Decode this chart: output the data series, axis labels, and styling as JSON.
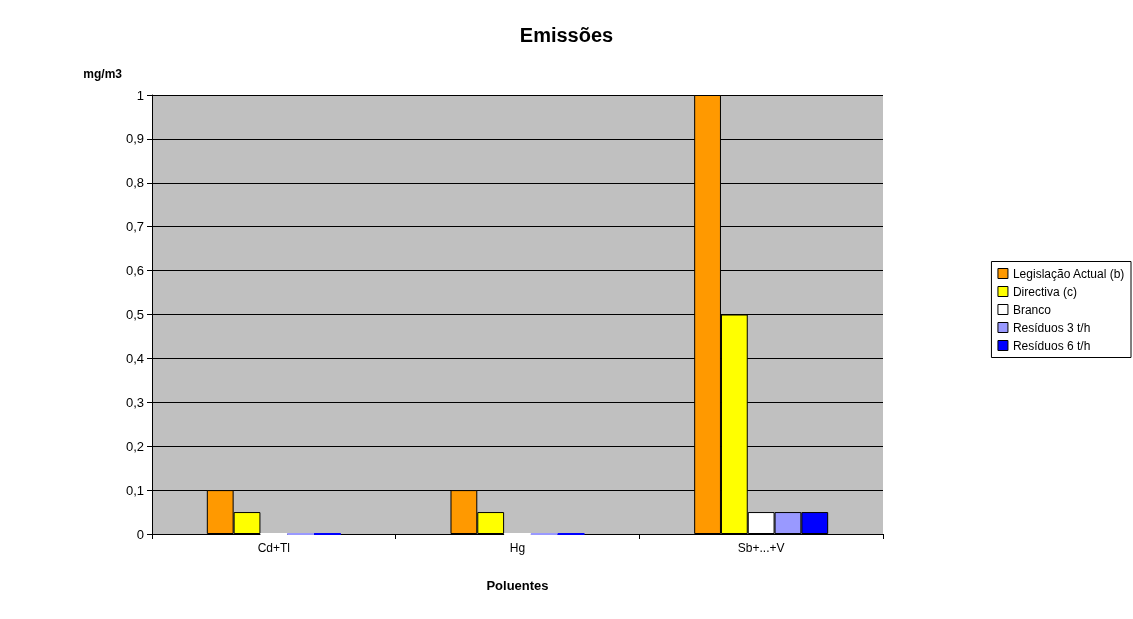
{
  "chart_data": {
    "type": "bar",
    "title": "Emissões",
    "xlabel": "Poluentes",
    "ylabel": "mg/m3",
    "categories": [
      "Cd+Tl",
      "Hg",
      "Sb+...+V"
    ],
    "series": [
      {
        "name": "Legislação Actual (b)",
        "color": "#ff9900",
        "values": [
          0.1,
          0.1,
          1
        ]
      },
      {
        "name": "Directiva (c)",
        "color": "#ffff00",
        "values": [
          0.05,
          0.05,
          0.5
        ]
      },
      {
        "name": "Branco",
        "color": "#ffffff",
        "values": [
          0,
          0,
          0.05
        ]
      },
      {
        "name": "Resíduos 3 t/h",
        "color": "#9999ff",
        "values": [
          0,
          0,
          0.05
        ]
      },
      {
        "name": "Resíduos 6 t/h",
        "color": "#0000ff",
        "values": [
          0,
          0,
          0.05
        ]
      }
    ],
    "ylim": [
      0,
      1
    ],
    "yticks": [
      0,
      {
        "value": 0.1,
        "label": "0,1"
      },
      {
        "value": 0.2,
        "label": "0,2"
      },
      {
        "value": 0.3,
        "label": "0,3"
      },
      {
        "value": 0.4,
        "label": "0,4"
      },
      {
        "value": 0.5,
        "label": "0,5"
      },
      {
        "value": 0.6,
        "label": "0,6"
      },
      {
        "value": 0.7,
        "label": "0,7"
      },
      {
        "value": 0.8,
        "label": "0,8"
      },
      {
        "value": 0.9,
        "label": "0,9"
      },
      1
    ],
    "grid": "y",
    "legend": "right"
  }
}
